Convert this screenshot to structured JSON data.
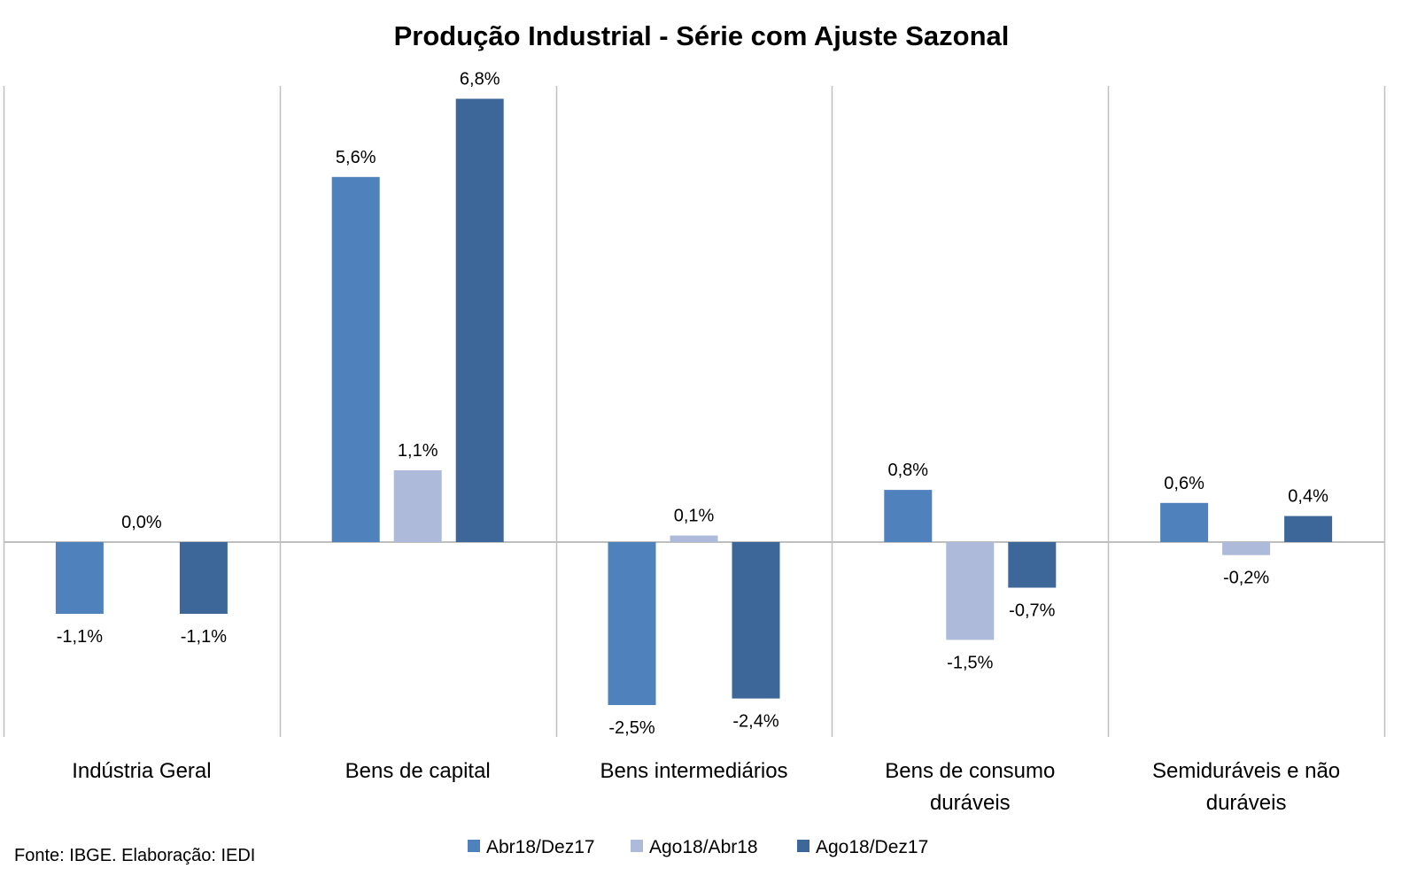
{
  "chart_data": {
    "type": "bar",
    "title": "Produção Industrial - Série com Ajuste Sazonal",
    "categories": [
      [
        "Indústria Geral"
      ],
      [
        "Bens de capital"
      ],
      [
        "Bens intermediários"
      ],
      [
        "Bens de consumo",
        "duráveis"
      ],
      [
        "Semiduráveis e não",
        "duráveis"
      ]
    ],
    "series": [
      {
        "name": "Abr18/Dez17",
        "color": "#4f81bd",
        "values": [
          -1.1,
          5.6,
          -2.5,
          0.8,
          0.6
        ],
        "labels": [
          "-1,1%",
          "5,6%",
          "-2,5%",
          "0,8%",
          "0,6%"
        ]
      },
      {
        "name": "Ago18/Abr18",
        "color": "#adbad9",
        "values": [
          0.0,
          1.1,
          0.1,
          -1.5,
          -0.2
        ],
        "labels": [
          "0,0%",
          "1,1%",
          "0,1%",
          "-1,5%",
          "-0,2%"
        ]
      },
      {
        "name": "Ago18/Dez17",
        "color": "#3e6799",
        "values": [
          -1.1,
          6.8,
          -2.4,
          -0.7,
          0.4
        ],
        "labels": [
          "-1,1%",
          "6,8%",
          "-2,4%",
          "-0,7%",
          "0,4%"
        ]
      }
    ],
    "ylim": [
      -3.0,
      7.0
    ],
    "grid": "vertical category separators",
    "legend": "bottom"
  },
  "source_note": "Fonte: IBGE. Elaboração: IEDI"
}
